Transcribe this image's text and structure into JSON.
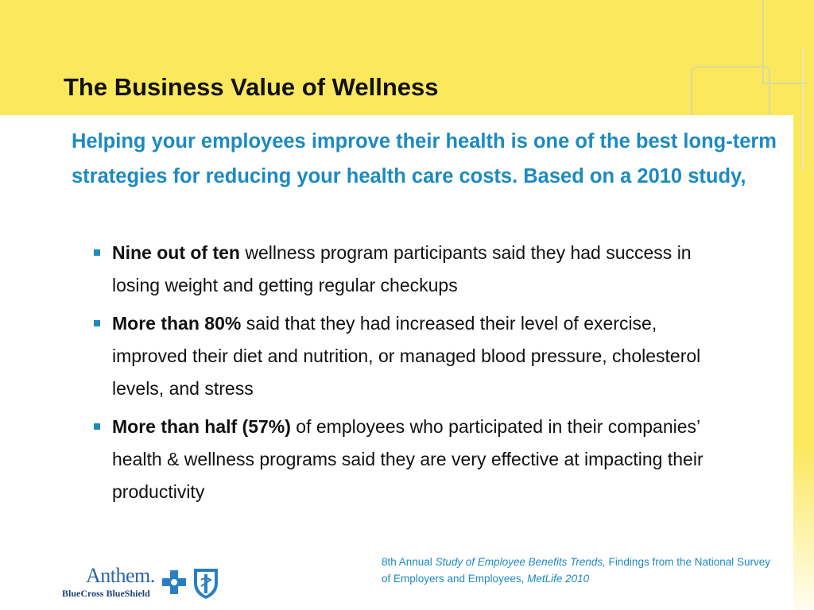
{
  "slide": {
    "title": "The Business Value of Wellness",
    "lead": "Helping your employees improve their health is one of the best long-term strategies for reducing your health care costs.  Based on a 2010 study,",
    "bullets": [
      {
        "strong": "Nine out of ten",
        "text": " wellness program participants said they had success in losing weight and getting regular checkups"
      },
      {
        "strong": "More than 80%",
        "text": " said that they had increased their level of exercise, improved their diet and nutrition, or managed blood pressure, cholesterol levels, and stress"
      },
      {
        "strong": "More than half (57%)",
        "text": " of employees who participated in their companies’ health & wellness programs said they are very effective at impacting their productivity"
      }
    ],
    "source": {
      "prefix": "8th Annual ",
      "study": "Study of Employee Benefits Trends,",
      "middle": " Findings from the National Survey of Employers and Employees, ",
      "publisher": "MetLife 2010"
    }
  },
  "logo": {
    "word": "Anthem.",
    "sub": "BlueCross BlueShield"
  },
  "colors": {
    "accent_yellow": "#fbe85c",
    "accent_blue": "#1d8ac0",
    "title_text": "#111111",
    "logo_blue": "#2a66a8"
  },
  "icons": [
    "bullet-square-icon",
    "blue-cross-icon",
    "blue-shield-icon"
  ]
}
